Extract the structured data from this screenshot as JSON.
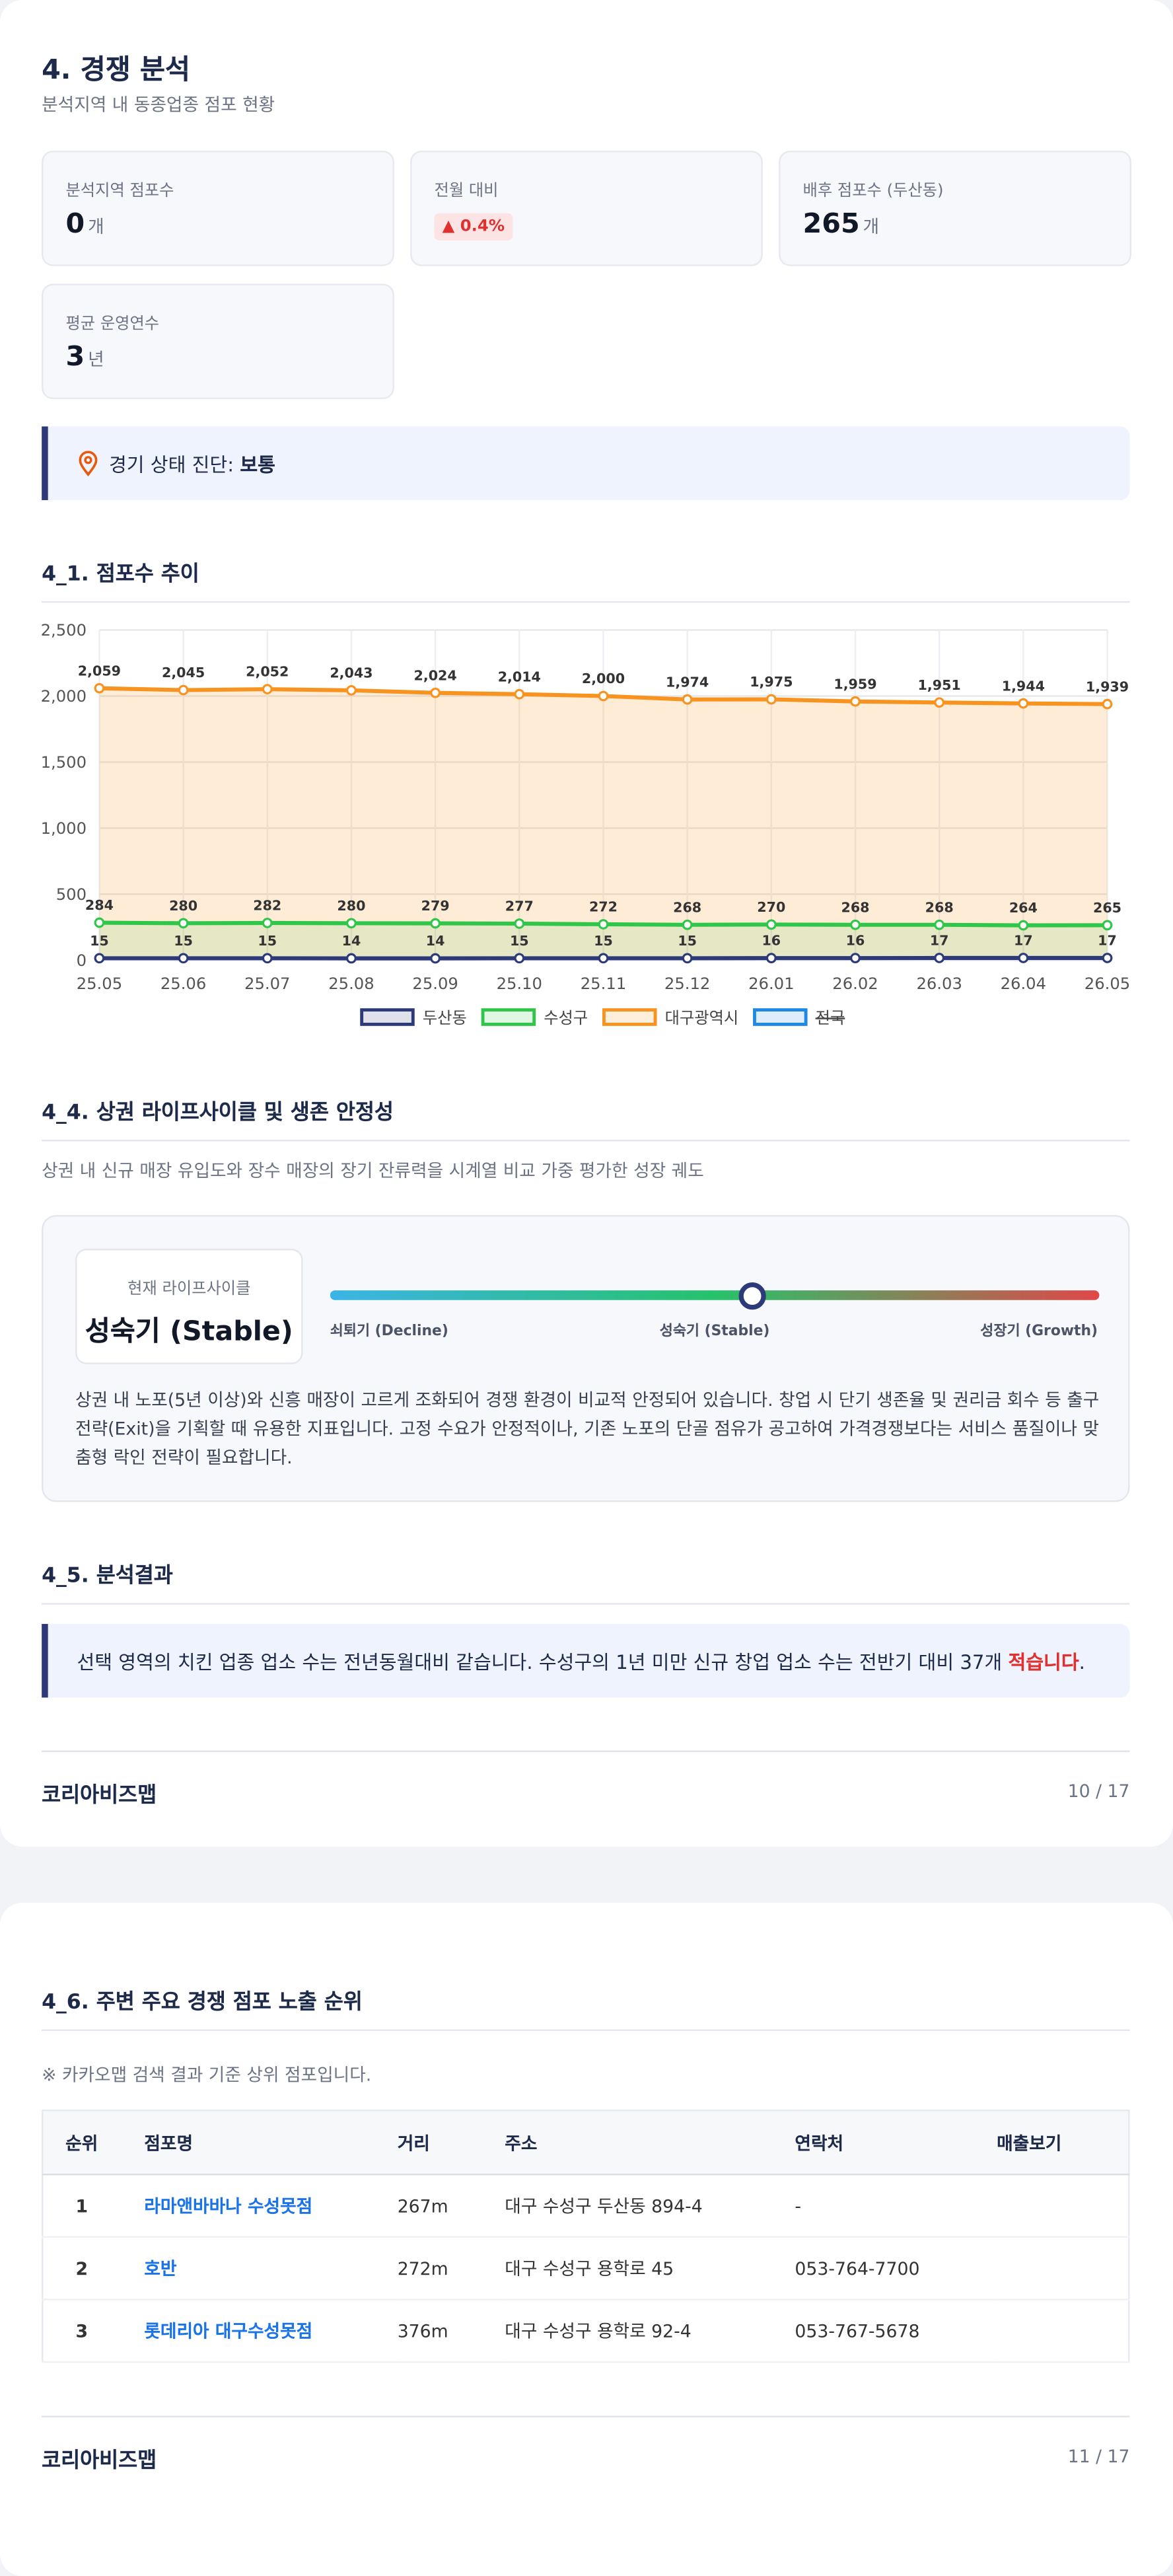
{
  "header": {
    "title": "4. 경쟁 분석",
    "subtitle": "분석지역 내 동종업종 점포 현황"
  },
  "stats": [
    {
      "label": "분석지역 점포수",
      "value": "0",
      "unit": "개"
    },
    {
      "label": "전월 대비",
      "badge": "▲ 0.4%"
    },
    {
      "label": "배후 점포수 (두산동)",
      "value": "265",
      "unit": "개"
    },
    {
      "label": "평균 운영연수",
      "value": "3",
      "unit": "년"
    }
  ],
  "diagnosis": {
    "label": "경기 상태 진단:",
    "value": "보통"
  },
  "trend_section": {
    "title": "4_1. 점포수 추이"
  },
  "chart_data": {
    "type": "line",
    "categories": [
      "25.05",
      "25.06",
      "25.07",
      "25.08",
      "25.09",
      "25.10",
      "25.11",
      "25.12",
      "26.01",
      "26.02",
      "26.03",
      "26.04",
      "26.05"
    ],
    "ylim": [
      0,
      2500
    ],
    "yticks": [
      0,
      500,
      {
        "value": 1000,
        "label": "1,000"
      },
      {
        "value": 1500,
        "label": "1,500"
      },
      {
        "value": 2000,
        "label": "2,000"
      },
      {
        "value": 2500,
        "label": "2,500"
      }
    ],
    "grid": true,
    "area": true,
    "series": [
      {
        "name": "두산동",
        "color": "#2d3a7a",
        "values": [
          15,
          15,
          15,
          14,
          14,
          15,
          15,
          15,
          16,
          16,
          17,
          17,
          17
        ]
      },
      {
        "name": "수성구",
        "color": "#2fc64a",
        "values": [
          284,
          280,
          282,
          280,
          279,
          277,
          272,
          268,
          270,
          268,
          268,
          264,
          265
        ]
      },
      {
        "name": "대구광역시",
        "color": "#f7931e",
        "values": [
          2059,
          2045,
          2052,
          2043,
          2024,
          2014,
          2000,
          1974,
          1975,
          1959,
          1951,
          1944,
          1939
        ],
        "value_labels": [
          "2,059",
          "2,045",
          "2,052",
          "2,043",
          "2,024",
          "2,014",
          "2,000",
          "1,974",
          "1,975",
          "1,959",
          "1,951",
          "1,944",
          "1,939"
        ]
      },
      {
        "name": "전국",
        "color": "#1e88e5",
        "hidden": true,
        "values": [
          null,
          null,
          null,
          null,
          null,
          null,
          null,
          null,
          null,
          null,
          null,
          null,
          null
        ]
      }
    ]
  },
  "lifecycle": {
    "title": "4_4. 상권 라이프사이클 및 생존 안정성",
    "description": "상권 내 신규 매장 유입도와 장수 매장의 장기 잔류력을 시계열 비교 가중 평가한 성장 궤도",
    "current_label": "현재 라이프사이클",
    "current_stage": "성숙기 (Stable)",
    "stages": [
      "쇠퇴기 (Decline)",
      "성숙기 (Stable)",
      "성장기 (Growth)"
    ],
    "text": "상권 내 노포(5년 이상)와 신흥 매장이 고르게 조화되어 경쟁 환경이 비교적 안정되어 있습니다. 창업 시 단기 생존율 및 권리금 회수 등 출구 전략(Exit)을 기획할 때 유용한 지표입니다. 고정 수요가 안정적이나, 기존 노포의 단골 점유가 공고하여 가격경쟁보다는 서비스 품질이나 맞춤형 락인 전략이 필요합니다."
  },
  "result": {
    "title": "4_5. 분석결과",
    "text_before": "선택 영역의 치킨 업종 업소 수는 전년동월대비 같습니다. 수성구의 1년 미만 신규 창업 업소 수는 전반기 대비 37개 ",
    "emphasis": "적습니다",
    "text_after": "."
  },
  "footer1": {
    "brand": "코리아비즈맵",
    "page": "10 / 17"
  },
  "ranking": {
    "title": "4_6. 주변 주요 경쟁 점포 노출 순위",
    "note": "※ 카카오맵 검색 결과 기준 상위 점포입니다.",
    "columns": [
      "순위",
      "점포명",
      "거리",
      "주소",
      "연락처",
      "매출보기"
    ],
    "rows": [
      [
        "1",
        "라마앤바바나 수성못점",
        "267m",
        "대구 수성구 두산동 894-4",
        "-"
      ],
      [
        "2",
        "호반",
        "272m",
        "대구 수성구 용학로 45",
        "053-764-7700"
      ],
      [
        "3",
        "롯데리아 대구수성못점",
        "376m",
        "대구 수성구 용학로 92-4",
        "053-767-5678"
      ]
    ]
  },
  "footer2": {
    "brand": "코리아비즈맵",
    "page": "11 / 17"
  }
}
